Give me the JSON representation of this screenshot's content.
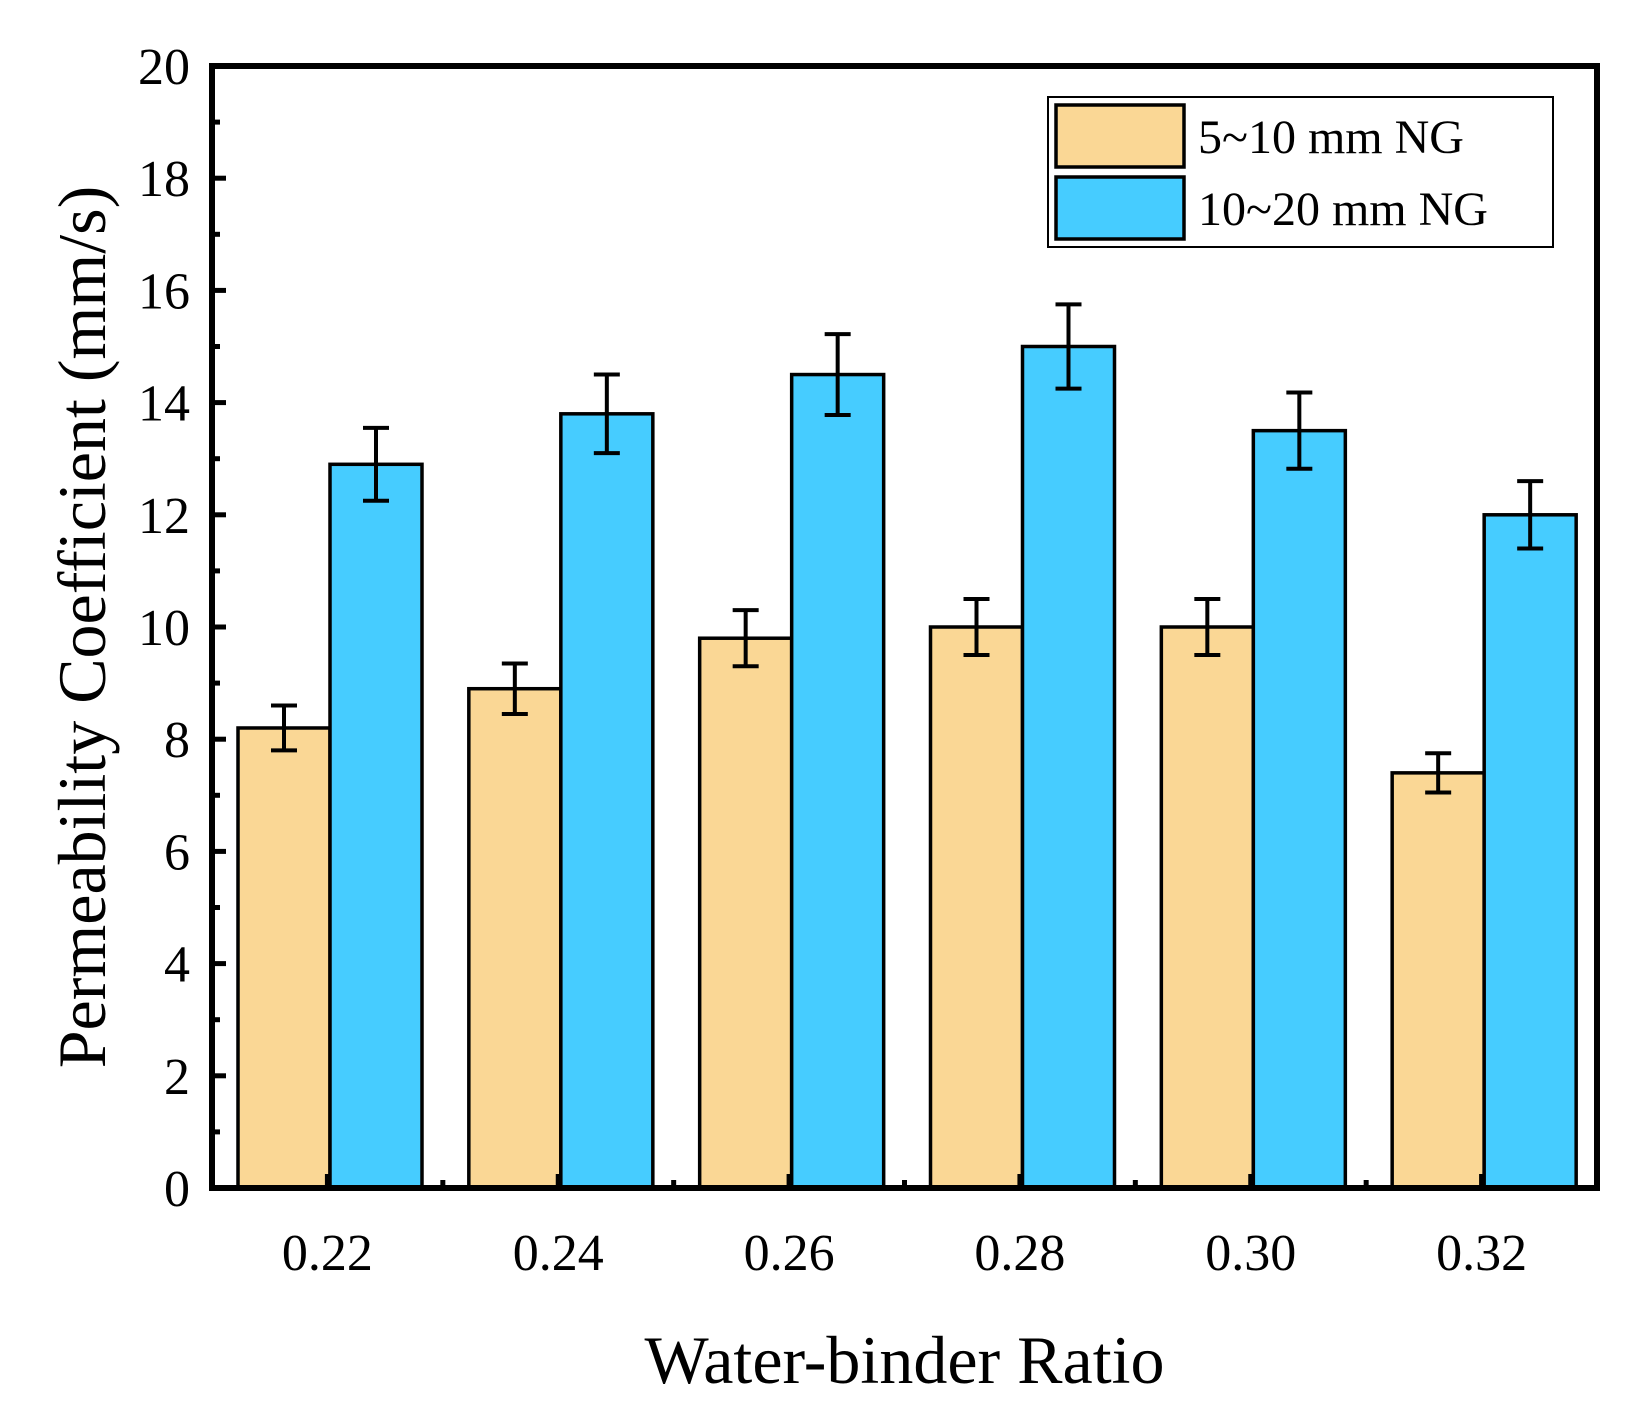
{
  "chart_data": {
    "type": "bar",
    "title": "",
    "xlabel": "Water-binder Ratio",
    "ylabel": "Permeability Coefficient (mm/s)",
    "ylim": [
      0,
      20
    ],
    "yticks": [
      "0",
      "2",
      "4",
      "6",
      "8",
      "10",
      "12",
      "14",
      "16",
      "18",
      "20"
    ],
    "categories": [
      "0.22",
      "0.24",
      "0.26",
      "0.28",
      "0.30",
      "0.32"
    ],
    "legend_position": "top-right",
    "grid": false,
    "series": [
      {
        "name": "5~10 mm NG",
        "color": "#FAD795",
        "values": [
          8.2,
          8.9,
          9.8,
          10.0,
          10.0,
          7.4
        ],
        "errors": [
          0.4,
          0.45,
          0.5,
          0.5,
          0.5,
          0.35
        ]
      },
      {
        "name": "10~20 mm NG",
        "color": "#46CCFF",
        "values": [
          12.9,
          13.8,
          14.5,
          15.0,
          13.5,
          12.0
        ],
        "errors": [
          0.65,
          0.7,
          0.72,
          0.75,
          0.68,
          0.6
        ]
      }
    ]
  }
}
